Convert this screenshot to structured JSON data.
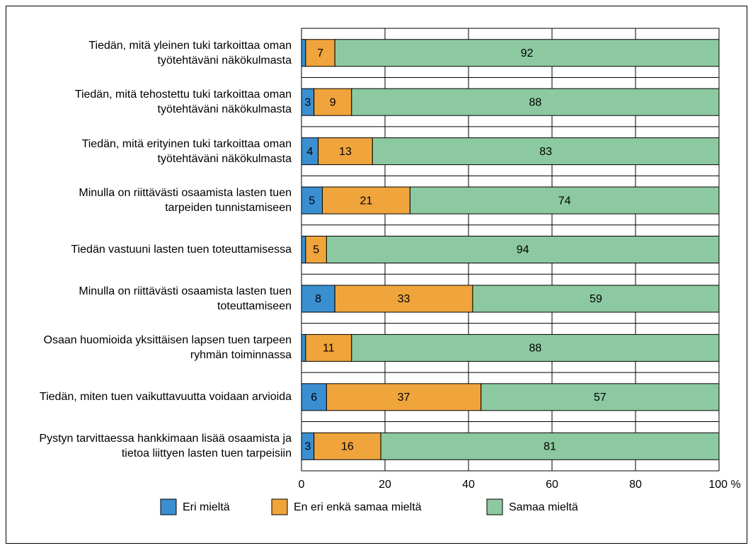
{
  "chart_data": {
    "type": "stacked-barh",
    "categories": [
      "Tiedän, mitä yleinen tuki tarkoittaa oman työtehtäväni näkökulmasta",
      "Tiedän, mitä tehostettu tuki tarkoittaa oman työtehtäväni näkökulmasta",
      "Tiedän, mitä erityinen tuki tarkoittaa oman työtehtäväni näkökulmasta",
      "Minulla on riittävästi osaamista lasten tuen tarpeiden tunnistamiseen",
      "Tiedän vastuuni lasten tuen toteuttamisessa",
      "Minulla on riittävästi osaamista lasten tuen toteuttamiseen",
      "Osaan huomioida yksittäisen lapsen tuen tarpeen ryhmän toiminnassa",
      "Tiedän, miten tuen vaikuttavuutta voidaan arvioida",
      "Pystyn tarvittaessa hankkimaan lisää osaamista ja tietoa liittyen lasten tuen tarpeisiin"
    ],
    "series": [
      {
        "name": "Eri mieltä",
        "color": "#3a8fd0",
        "values": [
          1,
          3,
          4,
          5,
          1,
          8,
          1,
          6,
          3
        ]
      },
      {
        "name": "En eri enkä samaa mieltä",
        "color": "#f0a43c",
        "values": [
          7,
          9,
          13,
          21,
          5,
          33,
          11,
          37,
          16
        ]
      },
      {
        "name": "Samaa mieltä",
        "color": "#8cc9a0",
        "values": [
          92,
          88,
          83,
          74,
          94,
          59,
          88,
          57,
          81
        ]
      }
    ],
    "xlim": [
      0,
      100
    ],
    "xticks": [
      0,
      20,
      40,
      60,
      80,
      {
        "value": 100,
        "label": "100 %"
      }
    ],
    "grid": true
  }
}
